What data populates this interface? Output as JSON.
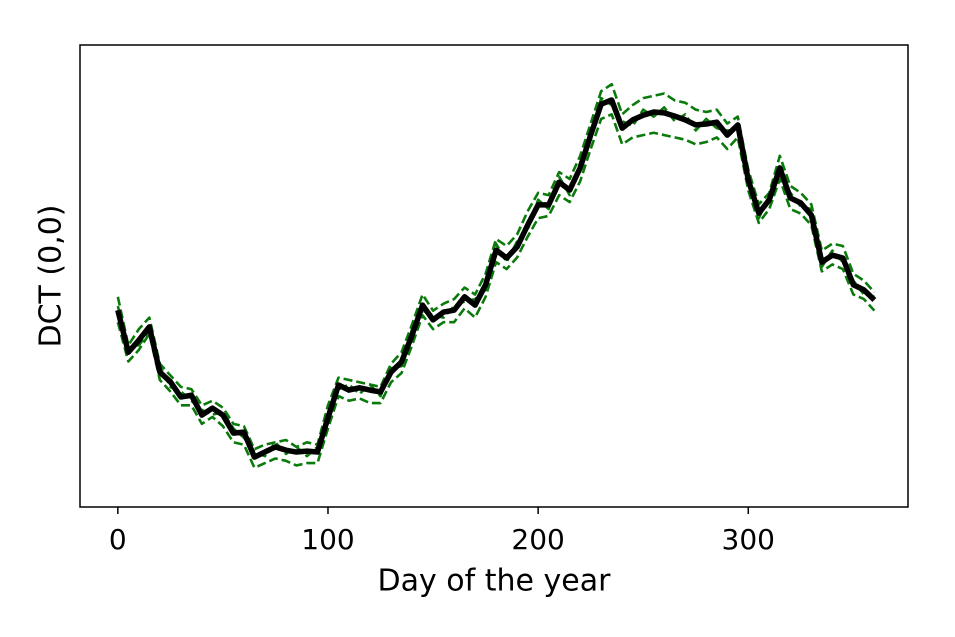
{
  "chart_data": {
    "type": "line",
    "xlabel": "Day of the year",
    "ylabel": "DCT (0,0)",
    "xlim": [
      -18,
      376
    ],
    "ylim": [
      0,
      100
    ],
    "xticks": [
      0,
      100,
      200,
      300
    ],
    "x": [
      0,
      5,
      10,
      15,
      20,
      25,
      30,
      35,
      40,
      45,
      50,
      55,
      60,
      65,
      70,
      75,
      80,
      85,
      90,
      95,
      100,
      105,
      110,
      115,
      120,
      125,
      130,
      135,
      140,
      145,
      150,
      155,
      160,
      165,
      170,
      175,
      180,
      185,
      190,
      195,
      200,
      205,
      210,
      215,
      220,
      225,
      230,
      235,
      240,
      245,
      250,
      255,
      260,
      265,
      270,
      275,
      280,
      285,
      290,
      295,
      300,
      305,
      310,
      315,
      320,
      325,
      330,
      335,
      340,
      345,
      350,
      355,
      360
    ],
    "series": [
      {
        "color": "#0a7a0a",
        "linestyle": "dashed",
        "values": [
          45.5,
          35.0,
          38.5,
          41.0,
          31.0,
          28.5,
          26.0,
          25.5,
          22.0,
          23.0,
          21.5,
          18.0,
          17.5,
          12.5,
          13.5,
          14.0,
          14.5,
          13.0,
          14.0,
          13.5,
          22.0,
          28.0,
          27.5,
          27.0,
          26.5,
          26.0,
          31.0,
          33.5,
          39.5,
          46.0,
          42.5,
          44.0,
          45.0,
          47.5,
          46.0,
          50.5,
          58.0,
          56.5,
          59.0,
          64.0,
          68.0,
          67.5,
          72.5,
          71.0,
          76.0,
          83.0,
          90.0,
          91.5,
          85.0,
          87.0,
          88.5,
          89.0,
          89.5,
          88.0,
          87.5,
          86.0,
          85.5,
          86.0,
          83.0,
          84.5,
          73.0,
          65.5,
          68.0,
          76.0,
          69.5,
          68.0,
          65.5,
          55.5,
          57.0,
          56.5,
          50.5,
          49.0,
          46.5
        ]
      },
      {
        "color": "#0a7a0a",
        "linestyle": "dashed",
        "values": [
          40.0,
          31.5,
          34.0,
          37.5,
          27.5,
          25.0,
          22.0,
          22.0,
          18.0,
          19.5,
          17.5,
          14.0,
          13.5,
          8.5,
          9.5,
          10.5,
          10.0,
          9.0,
          9.5,
          9.5,
          17.0,
          24.0,
          23.0,
          23.5,
          22.5,
          22.5,
          27.0,
          29.0,
          35.0,
          41.5,
          38.5,
          40.0,
          40.0,
          43.0,
          41.0,
          45.5,
          53.0,
          51.5,
          54.0,
          58.5,
          62.5,
          63.0,
          67.5,
          66.0,
          70.5,
          77.5,
          84.0,
          85.0,
          78.5,
          80.0,
          80.5,
          81.0,
          80.5,
          80.0,
          79.5,
          78.5,
          79.0,
          80.0,
          77.5,
          80.0,
          68.5,
          61.5,
          64.5,
          71.0,
          64.5,
          63.5,
          61.0,
          51.0,
          52.5,
          51.5,
          46.0,
          45.0,
          42.5
        ]
      },
      {
        "color": "#0a7a0a",
        "linestyle": "dashed",
        "values": [
          43.5,
          34.5,
          35.0,
          38.0,
          30.5,
          26.0,
          25.0,
          23.0,
          21.0,
          20.0,
          20.5,
          17.0,
          15.0,
          12.0,
          11.0,
          14.0,
          11.5,
          13.0,
          11.0,
          13.0,
          20.5,
          25.5,
          26.5,
          24.5,
          26.5,
          24.0,
          30.0,
          30.5,
          38.5,
          42.5,
          41.5,
          41.0,
          43.5,
          44.5,
          45.0,
          47.0,
          57.0,
          53.0,
          57.5,
          60.0,
          66.5,
          64.5,
          71.5,
          67.5,
          74.5,
          79.5,
          88.5,
          87.0,
          83.5,
          82.5,
          86.0,
          84.5,
          86.5,
          83.5,
          85.0,
          81.5,
          84.0,
          82.0,
          81.5,
          81.5,
          72.0,
          62.5,
          67.5,
          72.0,
          68.0,
          65.0,
          64.5,
          52.0,
          55.5,
          53.0,
          49.0,
          46.0,
          45.5
        ]
      },
      {
        "color": "#000000",
        "linestyle": "solid",
        "values": [
          42.6,
          33.5,
          36.1,
          39.0,
          29.2,
          27.1,
          23.8,
          24.2,
          19.9,
          21.4,
          19.9,
          16.0,
          16.2,
          10.8,
          11.9,
          13.0,
          12.3,
          11.9,
          12.1,
          11.9,
          19.3,
          26.4,
          25.3,
          25.8,
          25.3,
          24.9,
          29.2,
          31.4,
          37.2,
          43.7,
          40.5,
          42.2,
          42.6,
          45.5,
          43.7,
          48.1,
          55.6,
          53.9,
          56.3,
          61.0,
          65.4,
          65.4,
          70.3,
          68.6,
          73.4,
          80.5,
          87.2,
          88.1,
          82.0,
          83.8,
          84.8,
          85.5,
          85.3,
          84.6,
          83.8,
          82.7,
          82.9,
          83.3,
          80.5,
          82.7,
          70.8,
          63.6,
          66.5,
          73.4,
          66.9,
          65.8,
          63.2,
          53.0,
          54.5,
          53.9,
          48.1,
          47.0,
          44.8
        ]
      }
    ]
  }
}
